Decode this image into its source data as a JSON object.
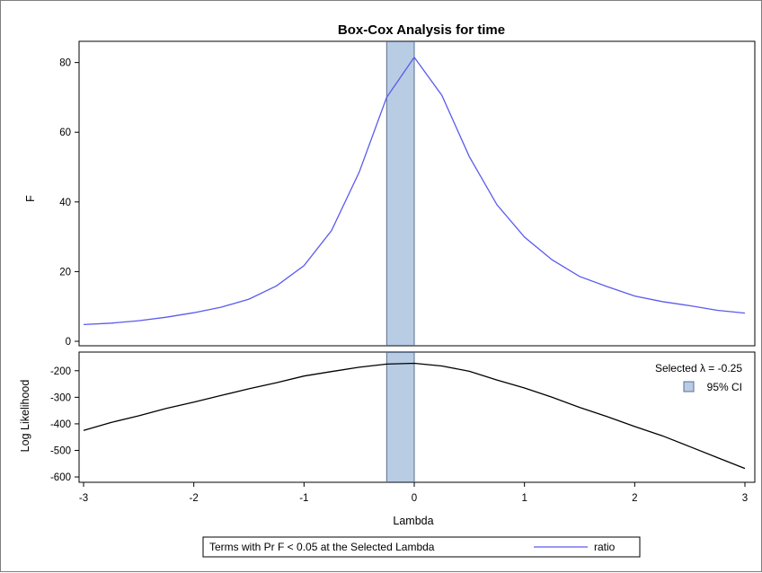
{
  "chart_data": {
    "type": "line",
    "title": "Box-Cox Analysis for time",
    "xlabel": "Lambda",
    "xlim": [
      -3,
      3
    ],
    "x_ticks": [
      -3,
      -2,
      -1,
      0,
      1,
      2,
      3
    ],
    "ci_band": [
      -0.25,
      0
    ],
    "selected_lambda_label": "Selected λ = -0.25",
    "ci_label": "95% CI",
    "ci_color": "#b8cce4",
    "panels": [
      {
        "ylabel": "F",
        "ylim": [
          0,
          83
        ],
        "y_ticks": [
          0,
          20,
          40,
          60,
          80
        ],
        "series": [
          {
            "name": "ratio",
            "color": "#5a5aee",
            "x": [
              -3,
              -2.75,
              -2.5,
              -2.25,
              -2,
              -1.75,
              -1.5,
              -1.25,
              -1,
              -0.75,
              -0.5,
              -0.25,
              0,
              0.25,
              0.5,
              0.75,
              1,
              1.25,
              1.5,
              1.75,
              2,
              2.25,
              2.5,
              2.75,
              3
            ],
            "y": [
              4.8,
              5.2,
              5.9,
              6.9,
              8.2,
              9.8,
              12.1,
              15.9,
              21.7,
              31.8,
              48.5,
              70.0,
              81.5,
              70.6,
              53.0,
              39.2,
              29.9,
              23.4,
              18.6,
              15.7,
              13.0,
              11.4,
              10.2,
              8.9,
              8.1
            ]
          }
        ]
      },
      {
        "ylabel": "Log Likelihood",
        "ylim": [
          -610,
          -150
        ],
        "y_ticks": [
          -200,
          -300,
          -400,
          -500,
          -600
        ],
        "series": [
          {
            "color": "#000000",
            "x": [
              -3,
              -2.75,
              -2.5,
              -2.25,
              -2,
              -1.75,
              -1.5,
              -1.25,
              -1,
              -0.75,
              -0.5,
              -0.25,
              0,
              0.25,
              0.5,
              0.75,
              1,
              1.25,
              1.5,
              1.75,
              2,
              2.25,
              2.5,
              2.75,
              3
            ],
            "y": [
              -425,
              -395,
              -370,
              -342,
              -318,
              -293,
              -268,
              -245,
              -220,
              -203,
              -187,
              -175,
              -172,
              -182,
              -202,
              -235,
              -265,
              -300,
              -338,
              -373,
              -410,
              -445,
              -486,
              -527,
              -568
            ]
          }
        ]
      }
    ],
    "legend": {
      "heading": "Terms with Pr F < 0.05 at the Selected Lambda",
      "entries": [
        "ratio"
      ]
    }
  }
}
